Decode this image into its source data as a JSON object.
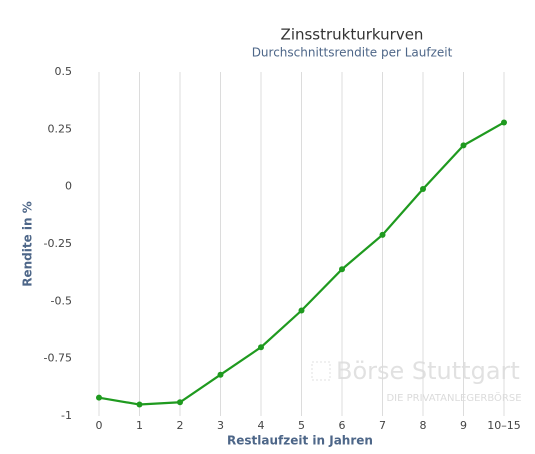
{
  "chart_data": {
    "type": "line",
    "title": "Zinsstrukturkurven",
    "subtitle": "Durchschnittsrendite per Laufzeit",
    "x_label": "Restlaufzeit in Jahren",
    "y_label": "Rendite in %",
    "categories": [
      "0",
      "1",
      "2",
      "3",
      "4",
      "5",
      "6",
      "7",
      "8",
      "9",
      "10–15"
    ],
    "series": [
      {
        "name": "Rendite",
        "color": "#1f9a1f",
        "values": [
          -0.92,
          -0.95,
          -0.94,
          -0.82,
          -0.7,
          -0.54,
          -0.36,
          -0.21,
          -0.01,
          0.18,
          0.28
        ]
      }
    ],
    "ylim": [
      -1,
      0.5
    ],
    "yticks": [
      -1,
      -0.75,
      -0.5,
      -0.25,
      0,
      0.25,
      0.5
    ],
    "grid": "x",
    "watermark": {
      "brand": "Börse Stuttgart",
      "tagline": "DIE PRIVATANLEGERBÖRSE"
    }
  }
}
